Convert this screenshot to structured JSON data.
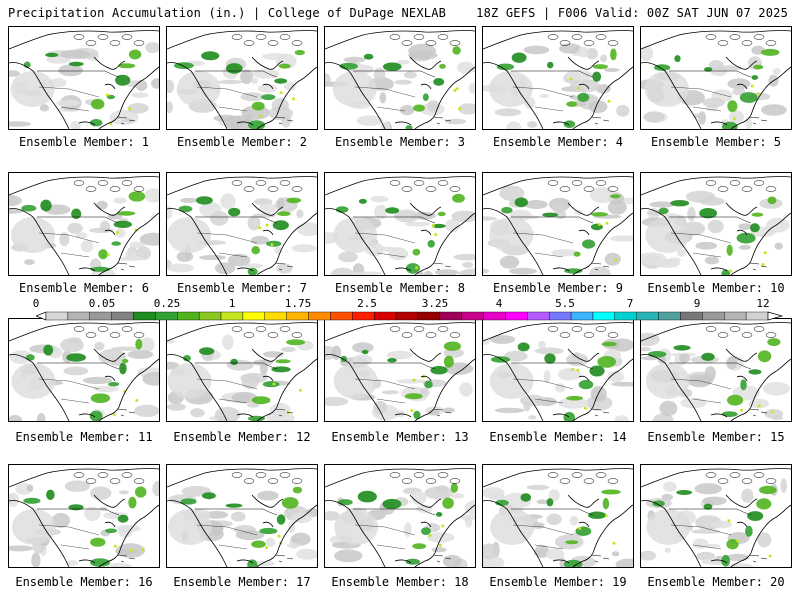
{
  "header": {
    "left_title": "Precipitation Accumulation (in.) | College of DuPage NEXLAB",
    "right_title": "18Z GEFS | F006 Valid: 00Z SAT JUN 07 2025"
  },
  "colorbar": {
    "tick_labels": [
      "0",
      "0.05",
      "0.25",
      "1",
      "1.75",
      "2.5",
      "3.25",
      "4",
      "5.5",
      "7",
      "9",
      "12"
    ],
    "colors": [
      "#d6d6d6",
      "#b4b4b4",
      "#9a9a9a",
      "#828282",
      "#1e8c1e",
      "#32a032",
      "#50b41e",
      "#8cc81e",
      "#c8e61e",
      "#ffff00",
      "#ffdc00",
      "#ffb400",
      "#ff8c00",
      "#ff5000",
      "#ff1e00",
      "#dc0000",
      "#b40000",
      "#960000",
      "#a0005a",
      "#c8008c",
      "#e600c8",
      "#ff00ff",
      "#b45aff",
      "#7878ff",
      "#3cb4ff",
      "#00ffff",
      "#00d2d2",
      "#28b4b4",
      "#50a0a0",
      "#787878",
      "#9a9a9a",
      "#b4b4b4",
      "#d2d2d2"
    ]
  },
  "panels": [
    {
      "label": "Ensemble Member: 1"
    },
    {
      "label": "Ensemble Member: 2"
    },
    {
      "label": "Ensemble Member: 3"
    },
    {
      "label": "Ensemble Member: 4"
    },
    {
      "label": "Ensemble Member: 5"
    },
    {
      "label": "Ensemble Member: 6"
    },
    {
      "label": "Ensemble Member: 7"
    },
    {
      "label": "Ensemble Member: 8"
    },
    {
      "label": "Ensemble Member: 9"
    },
    {
      "label": "Ensemble Member: 10"
    },
    {
      "label": "Ensemble Member: 11"
    },
    {
      "label": "Ensemble Member: 12"
    },
    {
      "label": "Ensemble Member: 13"
    },
    {
      "label": "Ensemble Member: 14"
    },
    {
      "label": "Ensemble Member: 15"
    },
    {
      "label": "Ensemble Member: 16"
    },
    {
      "label": "Ensemble Member: 17"
    },
    {
      "label": "Ensemble Member: 18"
    },
    {
      "label": "Ensemble Member: 19"
    },
    {
      "label": "Ensemble Member: 20"
    }
  ]
}
